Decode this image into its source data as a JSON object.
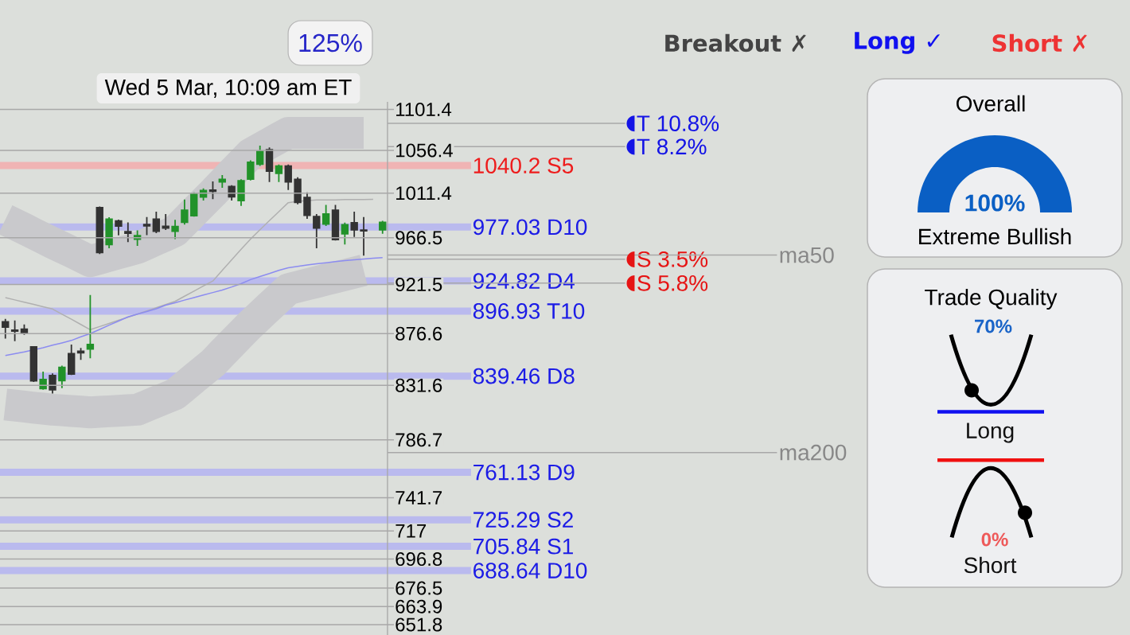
{
  "chart_data": [
    {
      "type": "candlestick",
      "categories": [
        null,
        null,
        null,
        null,
        null,
        null,
        null,
        null,
        null,
        null,
        null,
        null,
        null,
        null,
        null,
        null,
        null,
        null,
        null,
        null,
        null,
        null,
        null,
        null,
        null,
        null,
        null,
        null,
        null,
        null,
        null,
        null,
        null,
        null,
        null,
        null,
        null,
        null,
        null,
        null,
        null
      ],
      "ohlc": [
        [
          887.1,
          889.9,
          872.1,
          882.4
        ],
        [
          879.6,
          888.3,
          869.9,
          878.9
        ],
        [
          880.6,
          884.8,
          875.5,
          876.8
        ],
        [
          864.9,
          865.3,
          834.5,
          835.4
        ],
        [
          828.8,
          843.3,
          827.9,
          836.5
        ],
        [
          839.9,
          841.7,
          824.7,
          827.9
        ],
        [
          835.6,
          848.5,
          829.2,
          846.9
        ],
        [
          858.8,
          866.9,
          840.4,
          841.1
        ],
        [
          860.9,
          863.8,
          853.4,
          859.7
        ],
        [
          862.9,
          911.7,
          854.8,
          866.9
        ],
        [
          996.5,
          997.8,
          950.6,
          952.1
        ],
        [
          959.7,
          986.8,
          956.1,
          985.0
        ],
        [
          983.2,
          984.5,
          968.8,
          978.1
        ],
        [
          972.4,
          981.7,
          962.2,
          970.9
        ],
        [
          965.0,
          973.7,
          958.4,
          968.6
        ],
        [
          979.6,
          987.0,
          969.1,
          978.3
        ],
        [
          985.0,
          992.4,
          970.9,
          972.9
        ],
        [
          977.8,
          990.1,
          974.2,
          976.0
        ],
        [
          972.9,
          984.2,
          965.2,
          977.5
        ],
        [
          981.8,
          1004.7,
          979.6,
          993.9
        ],
        [
          988.3,
          1012.2,
          987.5,
          1010.1
        ],
        [
          1007.3,
          1016.3,
          1003.7,
          1014.1
        ],
        [
          1014.4,
          1023.5,
          1005.2,
          1013.3
        ],
        [
          1022.9,
          1030.1,
          1016.9,
          1025.7
        ],
        [
          1018.3,
          1019.6,
          1003.7,
          1007.6
        ],
        [
          1003.7,
          1025.7,
          998.3,
          1024.3
        ],
        [
          1026.0,
          1045.7,
          1024.6,
          1043.8
        ],
        [
          1041.6,
          1061.6,
          1039.9,
          1055.3
        ],
        [
          1057.0,
          1059.6,
          1022.9,
          1034.2
        ],
        [
          1032.0,
          1041.3,
          1022.9,
          1039.7
        ],
        [
          1039.7,
          1041.3,
          1014.6,
          1022.9
        ],
        [
          1025.7,
          1027.9,
          999.9,
          1001.9
        ],
        [
          1007.0,
          1012.2,
          985.2,
          988.8
        ],
        [
          987.5,
          990.1,
          956.1,
          976.0
        ],
        [
          979.9,
          999.3,
          978.1,
          990.1
        ],
        [
          993.9,
          999.3,
          963.7,
          964.7
        ],
        [
          970.3,
          981.4,
          959.9,
          979.4
        ],
        [
          981.4,
          992.4,
          967.3,
          974.2
        ],
        [
          974.0,
          987.0,
          949.1,
          973.2
        ],
        null,
        [
          974.2,
          983.2,
          970.3,
          981.7
        ]
      ],
      "colors": [
        "#333333",
        "#333333",
        "#333333",
        "#333333",
        "#22922a",
        "#333333",
        "#22922a",
        "#333333",
        "#333333",
        "#22922a",
        "#333333",
        "#22922a",
        "#333333",
        "#333333",
        "#22922a",
        "#333333",
        "#333333",
        "#333333",
        "#22922a",
        "#22922a",
        "#22922a",
        "#22922a",
        "#333333",
        "#22922a",
        "#333333",
        "#22922a",
        "#22922a",
        "#22922a",
        "#333333",
        "#22922a",
        "#333333",
        "#333333",
        "#333333",
        "#333333",
        "#22922a",
        "#333333",
        "#22922a",
        "#333333",
        "#333333",
        null,
        "#22922a"
      ],
      "series": [
        {
          "type": "line",
          "color": "#c9c9cc",
          "values": [
            984.5,
            979.9,
            975.3,
            970.6,
            966.0,
            961.4,
            957.0,
            952.6,
            948.1,
            943.7,
            946.2,
            948.8,
            951.3,
            953.9,
            956.4,
            960.5,
            964.7,
            968.8,
            972.9,
            982.5,
            null,
            1001.8,
            1011.4,
            1021.7,
            1032.0,
            1042.3,
            1052.6,
            1058.3,
            1064.0,
            1069.7,
            1075.4,
            1075.4,
            1075.4,
            1075.4,
            1075.4,
            1075.4,
            1075.4,
            1075.4,
            1075.4,
            null,
            null
          ]
        },
        {
          "type": "line",
          "color": "#c9c9cc",
          "values": [
            815.5,
            814.6,
            813.8,
            812.9,
            812.1,
            811.2,
            810.7,
            810.1,
            809.6,
            809.0,
            809.4,
            809.9,
            810.3,
            810.8,
            811.2,
            814.4,
            817.7,
            820.9,
            824.1,
            830.7,
            837.4,
            844.0,
            850.6,
            859.2,
            867.7,
            876.3,
            884.8,
            892.9,
            901.0,
            909.1,
            917.2,
            919.4,
            921.6,
            923.8,
            926.1,
            928.3,
            930.5,
            932.7,
            934.9,
            null,
            null
          ]
        },
        {
          "type": "line",
          "color": "#b0b0b0",
          "values": [
            909.3,
            907.2,
            905.1,
            903.0,
            900.9,
            898.8,
            894.1,
            889.5,
            884.8,
            880.1,
            882.9,
            885.7,
            888.5,
            891.3,
            894.1,
            897.0,
            900.0,
            902.9,
            905.8,
            910.6,
            915.3,
            920.1,
            924.8,
            934.9,
            945.0,
            955.1,
            965.2,
            974.3,
            983.4,
            992.5,
            1001.6,
            1002.9,
            null,
            1004.3,
            1004.4,
            1004.5,
            1004.7,
            1004.8,
            1004.9,
            1005.0,
            null
          ]
        },
        {
          "type": "line",
          "color": "#8c8cf0",
          "values": [
            857.3,
            858.8,
            860.4,
            null,
            864.0,
            866.3,
            868.3,
            870.5,
            873.7,
            876.6,
            880.3,
            884.1,
            887.8,
            891.6,
            894.1,
            896.5,
            899.0,
            902.3,
            904.6,
            907.0,
            909.3,
            911.7,
            914.0,
            916.4,
            919.2,
            922.3,
            926.1,
            929.1,
            931.9,
            934.9,
            937.4,
            938.7,
            940.0,
            941.2,
            942.2,
            943.2,
            944.3,
            945.0,
            945.8,
            946.5,
            947.0
          ]
        }
      ],
      "ylim": [
        645,
        1110
      ],
      "yticks": [
        1101.4,
        1056.4,
        1011.4,
        966.5,
        921.5,
        876.6,
        831.6,
        786.7,
        741.7,
        717,
        696.8,
        676.5,
        663.9,
        651.8
      ],
      "log": "y",
      "grid": "y",
      "tick_labels": "y",
      "ref_lines": [
        {
          "axis": "y",
          "value": 1040.2,
          "label": "1040.2 S5",
          "color": "#f0b4b4"
        },
        {
          "axis": "y",
          "value": 977.03,
          "label": "977.03 D10",
          "color": "#babaee"
        },
        {
          "axis": "y",
          "value": 924.82,
          "label": "924.82 D4",
          "color": "#babaee"
        },
        {
          "axis": "y",
          "value": 896.93,
          "label": "896.93 T10",
          "color": "#babaee"
        },
        {
          "axis": "y",
          "value": 839.46,
          "label": "839.46 D8",
          "color": "#babaee"
        },
        {
          "axis": "y",
          "value": 761.13,
          "label": "761.13 D9",
          "color": "#babaee"
        },
        {
          "axis": "y",
          "value": 725.29,
          "label": "725.29 S2",
          "color": "#babaee"
        },
        {
          "axis": "y",
          "value": 705.84,
          "label": "705.84 S1",
          "color": "#babaee"
        },
        {
          "axis": "y",
          "value": 688.64,
          "label": "688.64 D10",
          "color": "#babaee"
        },
        {
          "axis": "y",
          "value": 1085.8,
          "label": "T 10.8%"
        },
        {
          "axis": "y",
          "value": 1060.4,
          "label": "T 8.2%"
        },
        {
          "axis": "y",
          "value": 945.5,
          "label": "S 3.5%"
        },
        {
          "axis": "y",
          "value": 922.8,
          "label": "S 5.8%"
        },
        {
          "axis": "y",
          "value": 949.5,
          "label": "ma50",
          "color": "#a8a8a8"
        },
        {
          "axis": "y",
          "value": 776.6,
          "label": "ma200",
          "color": "#a8a8a8"
        }
      ],
      "annotations": [
        "Wed 5 Mar, 10:09 am ET",
        "125%",
        "Breakout ✗",
        "Long ✓",
        "Short ✗"
      ]
    },
    {
      "type": "pie",
      "title": "Overall",
      "categories": [
        null
      ],
      "values": [
        100
      ],
      "colors": [
        "#0a5fc4"
      ],
      "value_labels": [
        "100%"
      ],
      "annotations": [
        "Extreme Bullish"
      ]
    },
    {
      "type": "other",
      "title": "Trade Quality",
      "annotations": [
        "70%",
        "Long",
        "0%",
        "Short"
      ]
    }
  ]
}
